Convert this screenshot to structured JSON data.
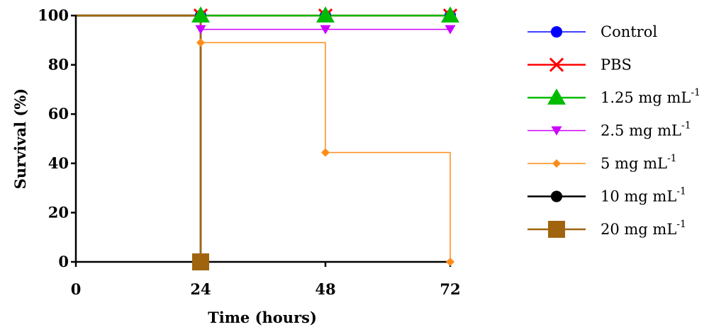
{
  "chart_data": {
    "type": "line",
    "step": true,
    "xlabel": "Time (hours)",
    "ylabel": "Survival (%)",
    "xlim": [
      0,
      72
    ],
    "ylim": [
      0,
      100
    ],
    "xticks": [
      "0",
      "24",
      "48",
      "72"
    ],
    "yticks": [
      "0",
      "20",
      "40",
      "60",
      "80",
      "100"
    ],
    "grid": false,
    "legend_position": "right",
    "series": [
      {
        "name": "Control",
        "sup": "",
        "color": "#0000ff",
        "marker": "circle",
        "x": [
          0,
          24,
          48,
          72
        ],
        "y": [
          100,
          100,
          100,
          100
        ]
      },
      {
        "name": "PBS",
        "sup": "",
        "color": "#ff0000",
        "marker": "x",
        "x": [
          0,
          24,
          48,
          72
        ],
        "y": [
          100,
          100,
          100,
          100
        ]
      },
      {
        "name": "1.25 mg mL",
        "sup": "-1",
        "color": "#00bb00",
        "marker": "triangle-up",
        "x": [
          0,
          24,
          48,
          72
        ],
        "y": [
          100,
          100,
          100,
          100
        ]
      },
      {
        "name": "2.5 mg mL",
        "sup": "-1",
        "color": "#cc00ff",
        "marker": "triangle-down",
        "x": [
          0,
          24,
          48,
          72
        ],
        "y": [
          100,
          94.4,
          94.4,
          94.4
        ]
      },
      {
        "name": "5 mg mL",
        "sup": "-1",
        "color": "#ff8c1a",
        "marker": "diamond",
        "x": [
          0,
          24,
          48,
          72
        ],
        "y": [
          100,
          89,
          44.4,
          0
        ]
      },
      {
        "name": "10 mg mL",
        "sup": "-1",
        "color": "#000000",
        "marker": "circle",
        "x": [
          0,
          24
        ],
        "y": [
          100,
          0
        ]
      },
      {
        "name": "20 mg mL",
        "sup": "-1",
        "color": "#a0640f",
        "marker": "square",
        "x": [
          0,
          24
        ],
        "y": [
          100,
          0
        ]
      }
    ]
  }
}
